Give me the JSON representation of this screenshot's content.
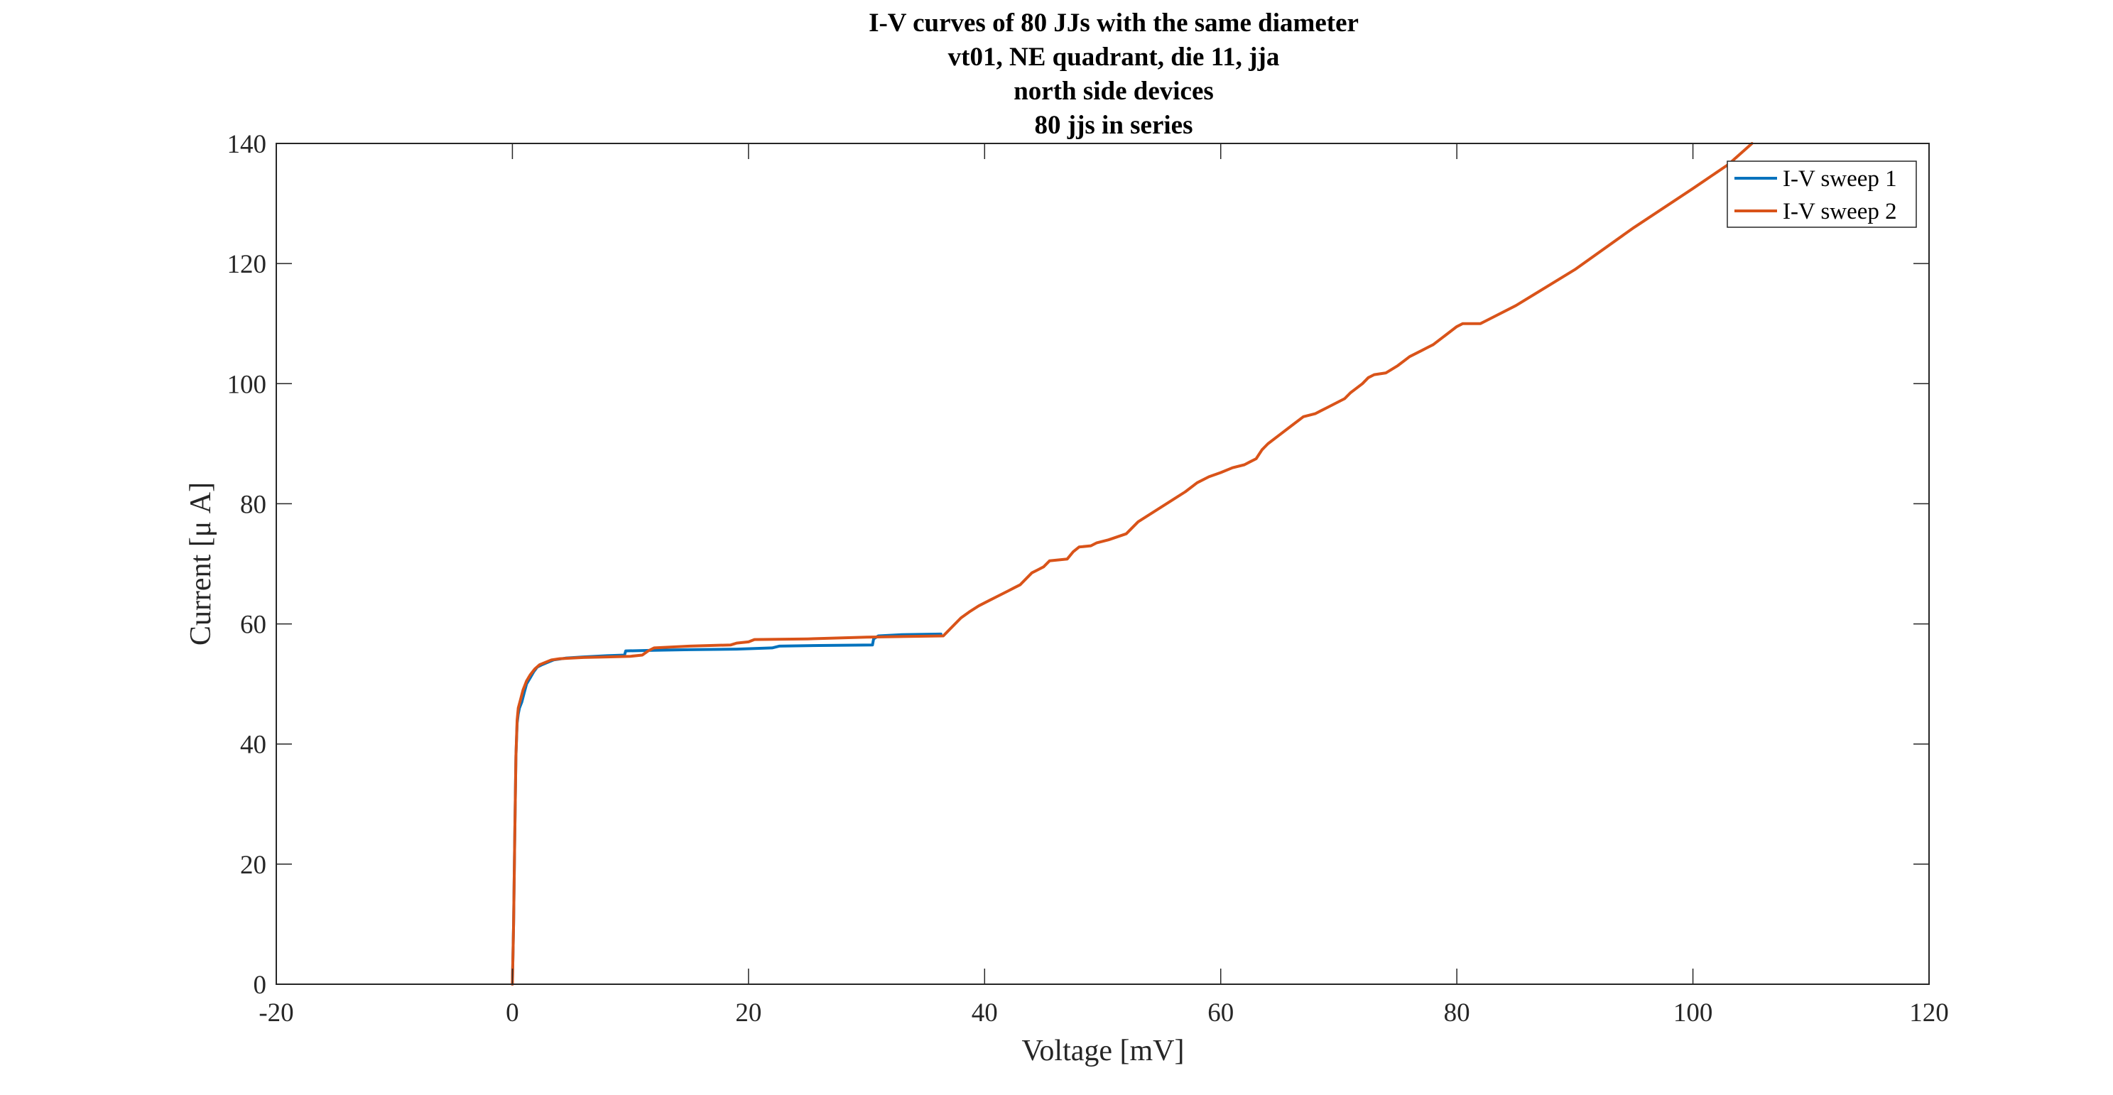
{
  "chart_data": {
    "type": "line",
    "title": [
      "I-V curves of 80 JJs with the same diameter",
      "vt01, NE quadrant, die 11, jja",
      "north side devices",
      "80 jjs in series"
    ],
    "xlabel": "Voltage [mV]",
    "ylabel": "Current [μ A]",
    "xlim": [
      -20,
      120
    ],
    "ylim": [
      0,
      140
    ],
    "xticks": [
      -20,
      0,
      20,
      40,
      60,
      80,
      100,
      120
    ],
    "yticks": [
      0,
      20,
      40,
      60,
      80,
      100,
      120,
      140
    ],
    "grid": false,
    "legend_position": "top-right",
    "series": [
      {
        "name": "I-V sweep 1",
        "color": "#0072BD",
        "x": [
          0.0,
          0.1,
          0.2,
          0.3,
          0.4,
          0.5,
          0.6,
          0.8,
          1.0,
          1.2,
          1.5,
          1.8,
          2.1,
          2.5,
          3.0,
          3.5,
          4.5,
          6.0,
          8.0,
          9.5,
          9.6,
          12.0,
          15.0,
          19.0,
          22.0,
          22.6,
          26.0,
          30.5,
          30.6,
          31.0,
          33.0,
          36.3
        ],
        "y": [
          0,
          10,
          25,
          38,
          43.5,
          45,
          46,
          47,
          48.5,
          50,
          51,
          52,
          52.8,
          53.2,
          53.6,
          54.0,
          54.3,
          54.5,
          54.7,
          54.8,
          55.5,
          55.6,
          55.7,
          55.8,
          56.0,
          56.3,
          56.4,
          56.5,
          57.5,
          58.0,
          58.2,
          58.3
        ]
      },
      {
        "name": "I-V sweep 2",
        "color": "#D95319",
        "x": [
          0.0,
          0.1,
          0.2,
          0.3,
          0.4,
          0.5,
          0.7,
          0.9,
          1.2,
          1.5,
          1.9,
          2.3,
          2.8,
          3.3,
          4.0,
          5.0,
          6.0,
          8.0,
          10.0,
          11.0,
          11.5,
          12.0,
          15.0,
          18.5,
          19.0,
          20.0,
          20.5,
          25.0,
          30.0,
          36.5,
          37.0,
          38.0,
          38.7,
          39.5,
          40.5,
          41.0,
          42.0,
          42.5,
          43.0,
          44.0,
          44.5,
          45.0,
          45.5,
          47.0,
          47.5,
          48.0,
          49.0,
          49.5,
          50.5,
          52.0,
          53.0,
          55.0,
          57.0,
          58.0,
          59.0,
          60.0,
          61.0,
          62.0,
          62.5,
          63.0,
          63.5,
          64.0,
          65.0,
          66.0,
          67.0,
          68.0,
          68.5,
          69.0,
          69.5,
          70.5,
          71.0,
          72.0,
          72.5,
          73.0,
          74.0,
          75.0,
          76.0,
          77.0,
          77.5,
          78.0,
          79.0,
          80.0,
          80.5,
          82.0,
          82.5,
          85.0,
          90.0,
          95.0,
          100.0,
          103.0,
          105.0
        ],
        "y": [
          0,
          10,
          25,
          38,
          44,
          46,
          47.5,
          49,
          50.5,
          51.5,
          52.5,
          53.2,
          53.6,
          54.0,
          54.2,
          54.3,
          54.4,
          54.5,
          54.6,
          54.8,
          55.5,
          56.0,
          56.3,
          56.5,
          56.8,
          57.0,
          57.4,
          57.5,
          57.8,
          58.0,
          59.0,
          61.0,
          62.0,
          63.0,
          64.0,
          64.5,
          65.5,
          66.0,
          66.5,
          68.5,
          69.0,
          69.5,
          70.5,
          70.8,
          72.0,
          72.8,
          73.0,
          73.5,
          74.0,
          75.0,
          77.0,
          79.5,
          82.0,
          83.5,
          84.5,
          85.2,
          86.0,
          86.5,
          87.0,
          87.5,
          89.0,
          90.0,
          91.5,
          93.0,
          94.5,
          95.0,
          95.5,
          96.0,
          96.5,
          97.5,
          98.5,
          100.0,
          101.0,
          101.5,
          101.8,
          103.0,
          104.5,
          105.5,
          106.0,
          106.5,
          108.0,
          109.5,
          110.0,
          110.0,
          110.5,
          113.0,
          119.0,
          126.0,
          132.5,
          136.5,
          140.0
        ]
      }
    ]
  }
}
